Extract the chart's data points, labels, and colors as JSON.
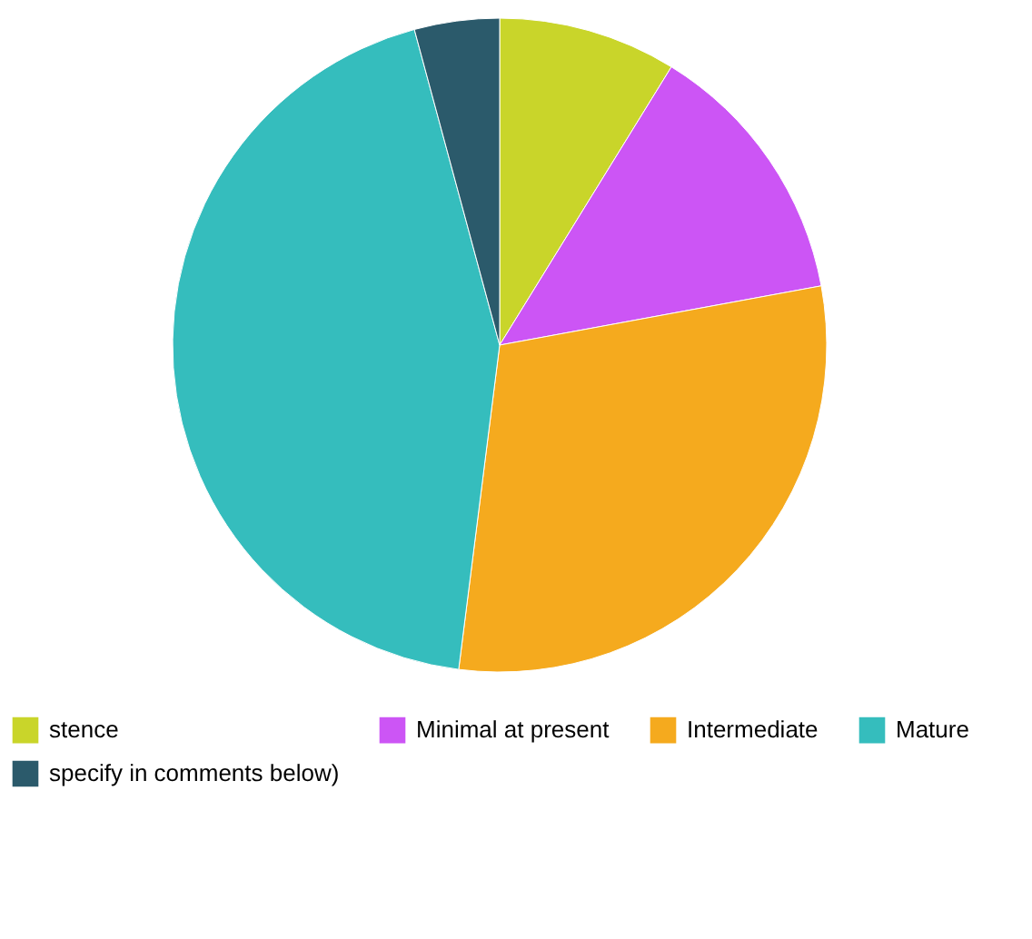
{
  "chart_data": {
    "type": "pie",
    "categories": [
      "stence",
      "Minimal at present",
      "Intermediate",
      "Mature",
      "specify in comments below)"
    ],
    "values": [
      8.8,
      13.3,
      29.9,
      43.8,
      4.2
    ],
    "colors": [
      "#c9d52a",
      "#cc55f5",
      "#f5aa1e",
      "#35bdbd",
      "#2b5a6b"
    ],
    "legend": "bottom"
  }
}
